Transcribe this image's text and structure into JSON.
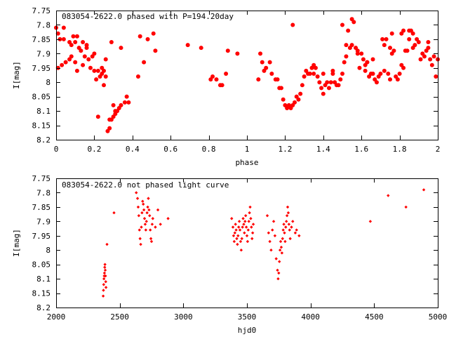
{
  "chart_data": [
    {
      "type": "scatter",
      "title": "083054-2622.0 phased with P=194.20day",
      "xlabel": "phase",
      "ylabel": "I[mag]",
      "xlim": [
        0,
        2
      ],
      "ylim": [
        7.75,
        8.2
      ],
      "y_inverted": true,
      "grid": false,
      "marker_color": "#ff0000",
      "marker": "filled-circle",
      "xticks": [
        0,
        0.2,
        0.4,
        0.6,
        0.8,
        1,
        1.2,
        1.4,
        1.6,
        1.8,
        2
      ],
      "xtick_labels": [
        "0",
        "0.2",
        "0.4",
        "0.6",
        "0.8",
        "1",
        "1.2",
        "1.4",
        "1.6",
        "1.8",
        "2"
      ],
      "yticks": [
        7.75,
        7.8,
        7.85,
        7.9,
        7.95,
        8,
        8.05,
        8.1,
        8.15,
        8.2
      ],
      "ytick_labels": [
        "7.75",
        "7.8",
        "7.85",
        "7.9",
        "7.95",
        "8",
        "8.05",
        "8.1",
        "8.15",
        "8.2"
      ],
      "points": [
        [
          0.0,
          7.81
        ],
        [
          0.01,
          7.83
        ],
        [
          0.02,
          7.85
        ],
        [
          0.01,
          7.95
        ],
        [
          0.03,
          7.94
        ],
        [
          0.04,
          7.85
        ],
        [
          0.04,
          7.81
        ],
        [
          0.05,
          7.93
        ],
        [
          0.07,
          7.86
        ],
        [
          0.07,
          7.92
        ],
        [
          0.08,
          7.91
        ],
        [
          0.08,
          7.87
        ],
        [
          0.09,
          7.84
        ],
        [
          0.1,
          7.86
        ],
        [
          0.1,
          7.93
        ],
        [
          0.11,
          7.96
        ],
        [
          0.11,
          7.84
        ],
        [
          0.12,
          7.88
        ],
        [
          0.13,
          7.89
        ],
        [
          0.14,
          7.86
        ],
        [
          0.14,
          7.94
        ],
        [
          0.15,
          7.91
        ],
        [
          0.16,
          7.88
        ],
        [
          0.16,
          7.87
        ],
        [
          0.17,
          7.92
        ],
        [
          0.18,
          7.95
        ],
        [
          0.19,
          7.91
        ],
        [
          0.2,
          7.96
        ],
        [
          0.2,
          7.9
        ],
        [
          0.21,
          7.99
        ],
        [
          0.22,
          8.12
        ],
        [
          0.22,
          7.96
        ],
        [
          0.23,
          7.98
        ],
        [
          0.24,
          7.97
        ],
        [
          0.24,
          7.95
        ],
        [
          0.25,
          7.96
        ],
        [
          0.25,
          8.01
        ],
        [
          0.26,
          7.98
        ],
        [
          0.26,
          7.92
        ],
        [
          0.27,
          8.17
        ],
        [
          0.28,
          8.16
        ],
        [
          0.28,
          8.13
        ],
        [
          0.29,
          8.13
        ],
        [
          0.3,
          8.12
        ],
        [
          0.3,
          8.08
        ],
        [
          0.31,
          8.1
        ],
        [
          0.31,
          8.11
        ],
        [
          0.32,
          8.1
        ],
        [
          0.33,
          8.09
        ],
        [
          0.34,
          8.08
        ],
        [
          0.29,
          7.86
        ],
        [
          0.34,
          7.88
        ],
        [
          0.36,
          8.07
        ],
        [
          0.37,
          8.05
        ],
        [
          0.38,
          8.07
        ],
        [
          0.43,
          7.98
        ],
        [
          0.44,
          7.84
        ],
        [
          0.46,
          7.93
        ],
        [
          0.48,
          7.85
        ],
        [
          0.51,
          7.83
        ],
        [
          0.52,
          7.89
        ],
        [
          0.69,
          7.87
        ],
        [
          0.76,
          7.88
        ],
        [
          0.81,
          7.99
        ],
        [
          0.82,
          7.98
        ],
        [
          0.84,
          7.99
        ],
        [
          0.86,
          8.01
        ],
        [
          0.87,
          8.01
        ],
        [
          0.89,
          7.97
        ],
        [
          0.9,
          7.89
        ],
        [
          0.95,
          7.9
        ],
        [
          1.06,
          7.99
        ],
        [
          1.07,
          7.9
        ],
        [
          1.08,
          7.93
        ],
        [
          1.09,
          7.96
        ],
        [
          1.1,
          7.95
        ],
        [
          1.12,
          7.93
        ],
        [
          1.13,
          7.97
        ],
        [
          1.15,
          7.99
        ],
        [
          1.16,
          7.99
        ],
        [
          1.17,
          8.02
        ],
        [
          1.18,
          8.02
        ],
        [
          1.19,
          8.06
        ],
        [
          1.2,
          8.08
        ],
        [
          1.21,
          8.09
        ],
        [
          1.22,
          8.08
        ],
        [
          1.23,
          8.09
        ],
        [
          1.24,
          7.8
        ],
        [
          1.24,
          8.08
        ],
        [
          1.25,
          8.07
        ],
        [
          1.26,
          8.05
        ],
        [
          1.27,
          8.06
        ],
        [
          1.28,
          8.04
        ],
        [
          1.29,
          8.01
        ],
        [
          1.3,
          7.98
        ],
        [
          1.31,
          7.96
        ],
        [
          1.32,
          7.97
        ],
        [
          1.33,
          7.97
        ],
        [
          1.34,
          7.95
        ],
        [
          1.35,
          7.94
        ],
        [
          1.36,
          7.95
        ],
        [
          1.37,
          7.98
        ],
        [
          1.38,
          8.0
        ],
        [
          1.39,
          8.02
        ],
        [
          1.4,
          8.04
        ],
        [
          1.4,
          7.97
        ],
        [
          1.41,
          8.01
        ],
        [
          1.42,
          8.0
        ],
        [
          1.43,
          8.02
        ],
        [
          1.44,
          8.0
        ],
        [
          1.45,
          7.96
        ],
        [
          1.46,
          8.0
        ],
        [
          1.47,
          8.01
        ],
        [
          1.48,
          8.01
        ],
        [
          1.49,
          7.99
        ],
        [
          1.5,
          7.97
        ],
        [
          1.5,
          7.8
        ],
        [
          1.51,
          7.93
        ],
        [
          1.52,
          7.91
        ],
        [
          1.53,
          7.82
        ],
        [
          1.54,
          7.88
        ],
        [
          1.55,
          7.87
        ],
        [
          1.55,
          7.78
        ],
        [
          1.56,
          7.79
        ],
        [
          1.57,
          7.88
        ],
        [
          1.58,
          7.9
        ],
        [
          1.59,
          7.95
        ],
        [
          1.6,
          7.9
        ],
        [
          1.61,
          7.92
        ],
        [
          1.62,
          7.94
        ],
        [
          1.62,
          7.96
        ],
        [
          1.63,
          7.93
        ],
        [
          1.64,
          7.98
        ],
        [
          1.65,
          7.97
        ],
        [
          1.66,
          7.97
        ],
        [
          1.67,
          7.99
        ],
        [
          1.68,
          8.0
        ],
        [
          1.69,
          7.98
        ],
        [
          1.7,
          7.97
        ],
        [
          1.71,
          7.85
        ],
        [
          1.72,
          7.87
        ],
        [
          1.72,
          7.96
        ],
        [
          1.73,
          7.85
        ],
        [
          1.74,
          7.97
        ],
        [
          1.75,
          7.99
        ],
        [
          1.76,
          7.9
        ],
        [
          1.76,
          7.83
        ],
        [
          1.77,
          7.89
        ],
        [
          1.78,
          7.98
        ],
        [
          1.79,
          7.99
        ],
        [
          1.8,
          7.97
        ],
        [
          1.81,
          7.94
        ],
        [
          1.82,
          7.95
        ],
        [
          1.82,
          7.82
        ],
        [
          1.83,
          7.89
        ],
        [
          1.84,
          7.89
        ],
        [
          1.85,
          7.85
        ],
        [
          1.86,
          7.82
        ],
        [
          1.87,
          7.83
        ],
        [
          1.87,
          7.88
        ],
        [
          1.88,
          7.87
        ],
        [
          1.89,
          7.85
        ],
        [
          1.9,
          7.86
        ],
        [
          1.91,
          7.92
        ],
        [
          1.92,
          7.9
        ],
        [
          1.93,
          7.91
        ],
        [
          1.94,
          7.89
        ],
        [
          1.95,
          7.86
        ],
        [
          1.95,
          7.88
        ],
        [
          1.96,
          7.92
        ],
        [
          1.97,
          7.94
        ],
        [
          1.98,
          7.91
        ],
        [
          1.99,
          7.98
        ],
        [
          2.0,
          7.92
        ],
        [
          1.81,
          7.83
        ],
        [
          1.85,
          7.82
        ],
        [
          1.75,
          7.88
        ],
        [
          1.66,
          7.92
        ],
        [
          1.63,
          7.93
        ],
        [
          1.58,
          7.89
        ],
        [
          1.52,
          7.87
        ],
        [
          1.45,
          7.97
        ],
        [
          1.35,
          7.97
        ]
      ]
    },
    {
      "type": "scatter",
      "title": "083054-2622.0 not phased light curve",
      "xlabel": "hjd0",
      "ylabel": "I[mag]",
      "xlim": [
        2000,
        5000
      ],
      "ylim": [
        7.75,
        8.2
      ],
      "y_inverted": true,
      "grid": false,
      "marker_color": "#ff0000",
      "marker": "small-diamond",
      "xticks": [
        2000,
        2500,
        3000,
        3500,
        4000,
        4500,
        5000
      ],
      "xtick_labels": [
        "2000",
        "2500",
        "3000",
        "3500",
        "4000",
        "4500",
        "5000"
      ],
      "yticks": [
        7.75,
        7.8,
        7.85,
        7.9,
        7.95,
        8,
        8.05,
        8.1,
        8.15,
        8.2
      ],
      "ytick_labels": [
        "7.75",
        "7.8",
        "7.85",
        "7.9",
        "7.95",
        "8",
        "8.05",
        "8.1",
        "8.15",
        "8.2"
      ],
      "points": [
        [
          2370,
          8.16
        ],
        [
          2372,
          8.14
        ],
        [
          2374,
          8.12
        ],
        [
          2376,
          8.1
        ],
        [
          2378,
          8.09
        ],
        [
          2380,
          8.08
        ],
        [
          2382,
          8.06
        ],
        [
          2384,
          8.05
        ],
        [
          2386,
          8.07
        ],
        [
          2388,
          8.09
        ],
        [
          2390,
          8.11
        ],
        [
          2392,
          8.13
        ],
        [
          2400,
          7.98
        ],
        [
          2455,
          7.87
        ],
        [
          2630,
          7.8
        ],
        [
          2640,
          7.82
        ],
        [
          2645,
          7.85
        ],
        [
          2650,
          7.88
        ],
        [
          2655,
          7.93
        ],
        [
          2660,
          7.96
        ],
        [
          2665,
          7.98
        ],
        [
          2670,
          7.92
        ],
        [
          2675,
          7.87
        ],
        [
          2680,
          7.83
        ],
        [
          2685,
          7.84
        ],
        [
          2690,
          7.86
        ],
        [
          2695,
          7.89
        ],
        [
          2700,
          7.91
        ],
        [
          2705,
          7.93
        ],
        [
          2710,
          7.9
        ],
        [
          2715,
          7.87
        ],
        [
          2720,
          7.85
        ],
        [
          2725,
          7.82
        ],
        [
          2730,
          7.86
        ],
        [
          2735,
          7.88
        ],
        [
          2740,
          7.93
        ],
        [
          2745,
          7.96
        ],
        [
          2750,
          7.97
        ],
        [
          2755,
          7.91
        ],
        [
          2760,
          7.89
        ],
        [
          2780,
          7.92
        ],
        [
          2800,
          7.86
        ],
        [
          2820,
          7.91
        ],
        [
          2880,
          7.89
        ],
        [
          3380,
          7.89
        ],
        [
          3390,
          7.92
        ],
        [
          3395,
          7.95
        ],
        [
          3400,
          7.97
        ],
        [
          3405,
          7.94
        ],
        [
          3410,
          7.91
        ],
        [
          3415,
          7.93
        ],
        [
          3420,
          7.96
        ],
        [
          3425,
          7.98
        ],
        [
          3430,
          7.95
        ],
        [
          3435,
          7.92
        ],
        [
          3440,
          7.9
        ],
        [
          3445,
          7.93
        ],
        [
          3450,
          7.97
        ],
        [
          3455,
          8.0
        ],
        [
          3460,
          7.96
        ],
        [
          3465,
          7.92
        ],
        [
          3470,
          7.89
        ],
        [
          3475,
          7.91
        ],
        [
          3480,
          7.94
        ],
        [
          3485,
          7.9
        ],
        [
          3490,
          7.88
        ],
        [
          3495,
          7.92
        ],
        [
          3500,
          7.95
        ],
        [
          3505,
          7.97
        ],
        [
          3510,
          7.93
        ],
        [
          3515,
          7.9
        ],
        [
          3520,
          7.87
        ],
        [
          3525,
          7.85
        ],
        [
          3530,
          7.89
        ],
        [
          3535,
          7.92
        ],
        [
          3540,
          7.96
        ],
        [
          3545,
          7.94
        ],
        [
          3550,
          7.91
        ],
        [
          3660,
          7.88
        ],
        [
          3670,
          7.94
        ],
        [
          3680,
          7.97
        ],
        [
          3690,
          8.0
        ],
        [
          3700,
          7.93
        ],
        [
          3710,
          7.9
        ],
        [
          3720,
          7.95
        ],
        [
          3730,
          8.03
        ],
        [
          3740,
          8.07
        ],
        [
          3745,
          8.1
        ],
        [
          3750,
          8.08
        ],
        [
          3755,
          8.04
        ],
        [
          3760,
          8.0
        ],
        [
          3765,
          7.97
        ],
        [
          3770,
          7.99
        ],
        [
          3775,
          8.01
        ],
        [
          3780,
          7.96
        ],
        [
          3785,
          7.93
        ],
        [
          3790,
          7.91
        ],
        [
          3795,
          7.94
        ],
        [
          3800,
          7.97
        ],
        [
          3805,
          7.92
        ],
        [
          3810,
          7.9
        ],
        [
          3815,
          7.88
        ],
        [
          3820,
          7.85
        ],
        [
          3825,
          7.87
        ],
        [
          3830,
          7.91
        ],
        [
          3835,
          7.93
        ],
        [
          3840,
          7.96
        ],
        [
          3850,
          7.92
        ],
        [
          3860,
          7.9
        ],
        [
          3880,
          7.94
        ],
        [
          3890,
          7.93
        ],
        [
          3910,
          7.95
        ],
        [
          4470,
          7.9
        ],
        [
          4610,
          7.81
        ],
        [
          4750,
          7.85
        ],
        [
          4890,
          7.79
        ]
      ]
    }
  ]
}
